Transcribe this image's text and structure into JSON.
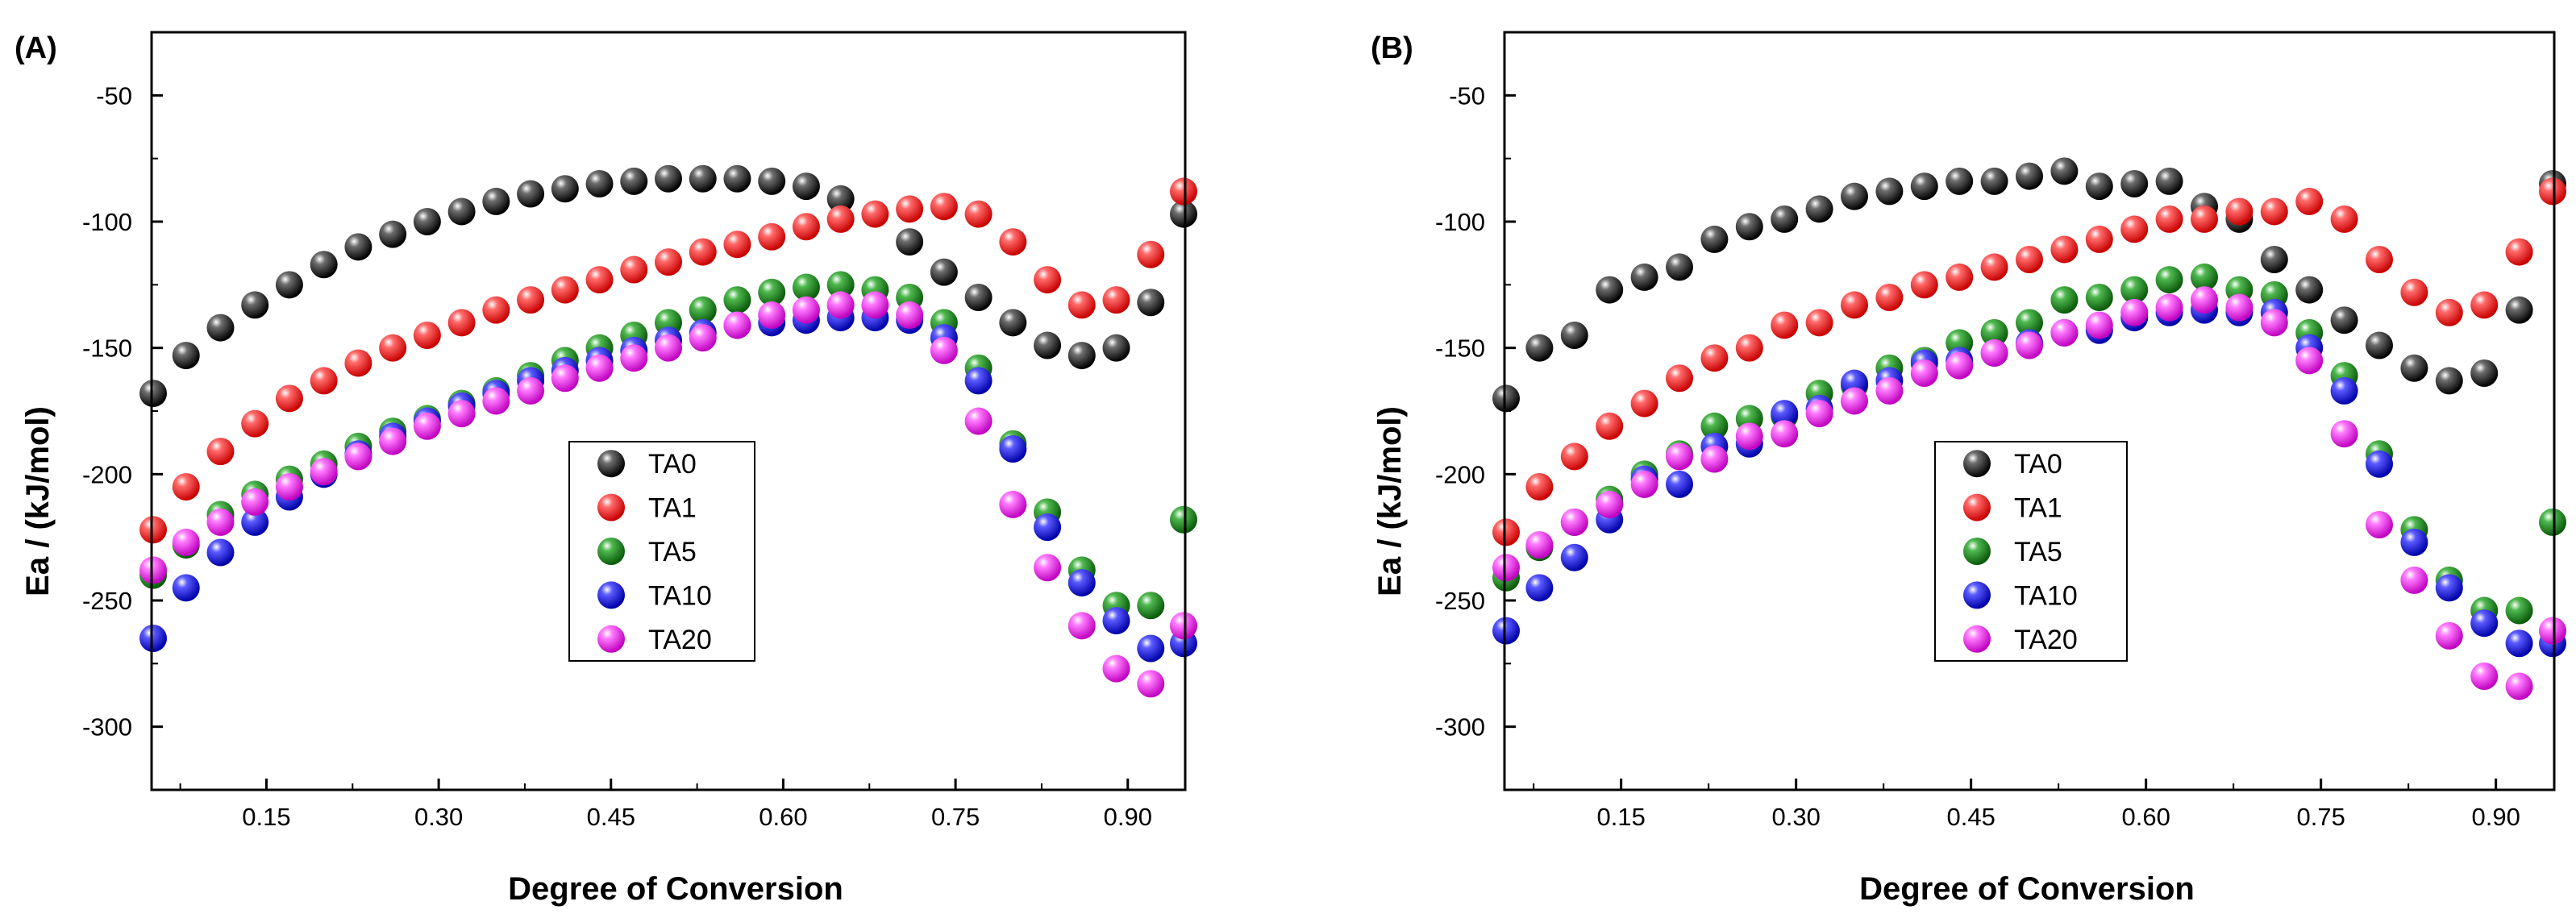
{
  "colors": {
    "TA0": "#1a1a1a",
    "TA1": "#ff1a1a",
    "TA5": "#1a8c1a",
    "TA10": "#1a1aff",
    "TA20": "#ff33ff"
  },
  "chart_data": [
    {
      "type": "scatter",
      "panel_label": "(A)",
      "xlabel": "Degree of Conversion",
      "ylabel": "Ea / (kJ/mol)",
      "xlim": [
        0.05,
        0.95
      ],
      "ylim": [
        -325,
        -25
      ],
      "xticks": [
        0.15,
        0.3,
        0.45,
        0.6,
        0.75,
        0.9
      ],
      "xtick_labels": [
        "0.15",
        "0.30",
        "0.45",
        "0.60",
        "0.75",
        "0.90"
      ],
      "yticks": [
        -50,
        -100,
        -150,
        -200,
        -250,
        -300
      ],
      "ytick_labels": [
        "-50",
        "-100",
        "-150",
        "-200",
        "-250",
        "-300"
      ],
      "legend": [
        "TA0",
        "TA1",
        "TA5",
        "TA10",
        "TA20"
      ],
      "x": [
        0.05,
        0.08,
        0.11,
        0.14,
        0.17,
        0.2,
        0.23,
        0.26,
        0.29,
        0.32,
        0.35,
        0.38,
        0.41,
        0.44,
        0.47,
        0.5,
        0.53,
        0.56,
        0.59,
        0.62,
        0.65,
        0.68,
        0.71,
        0.74,
        0.77,
        0.8,
        0.83,
        0.86,
        0.89,
        0.92,
        0.95
      ],
      "series": [
        {
          "name": "TA0",
          "values": [
            -168,
            -153,
            -142,
            -133,
            -125,
            -117,
            -110,
            -105,
            -100,
            -96,
            -92,
            -89,
            -87,
            -85,
            -84,
            -83,
            -83,
            -83,
            -84,
            -86,
            -91,
            null,
            -108,
            -120,
            -130,
            -140,
            -149,
            -153,
            -150,
            -132,
            -97
          ]
        },
        {
          "name": "TA1",
          "values": [
            -222,
            -205,
            -191,
            -180,
            -170,
            -163,
            -156,
            -150,
            -145,
            -140,
            -135,
            -131,
            -127,
            -123,
            -119,
            -116,
            -112,
            -109,
            -106,
            -102,
            -99,
            -97,
            -95,
            -94,
            -97,
            -108,
            -123,
            -133,
            -131,
            -113,
            -88
          ]
        },
        {
          "name": "TA5",
          "values": [
            -240,
            -228,
            -216,
            -208,
            -202,
            -196,
            -189,
            -183,
            -178,
            -172,
            -167,
            -161,
            -155,
            -150,
            -145,
            -140,
            -135,
            -131,
            -128,
            -126,
            -125,
            -127,
            -130,
            -140,
            -158,
            -188,
            -215,
            -238,
            -252,
            -252,
            -218
          ]
        },
        {
          "name": "TA10",
          "values": [
            -265,
            -245,
            -231,
            -219,
            -209,
            -200,
            -192,
            -185,
            -179,
            -173,
            -168,
            -163,
            -159,
            -155,
            -151,
            -147,
            -144,
            -141,
            -140,
            -139,
            -138,
            -138,
            -139,
            -146,
            -163,
            -190,
            -221,
            -243,
            -258,
            -269,
            -267
          ]
        },
        {
          "name": "TA20",
          "values": [
            -238,
            -227,
            -219,
            -211,
            -205,
            -199,
            -193,
            -187,
            -181,
            -176,
            -171,
            -167,
            -162,
            -158,
            -154,
            -150,
            -146,
            -141,
            -137,
            -135,
            -133,
            -133,
            -137,
            -151,
            -179,
            -212,
            -237,
            -260,
            -277,
            -283,
            -260
          ]
        }
      ]
    },
    {
      "type": "scatter",
      "panel_label": "(B)",
      "xlabel": "Degree of Conversion",
      "ylabel": "Ea / (kJ/mol)",
      "xlim": [
        0.05,
        0.95
      ],
      "ylim": [
        -325,
        -25
      ],
      "xticks": [
        0.15,
        0.3,
        0.45,
        0.6,
        0.75,
        0.9
      ],
      "xtick_labels": [
        "0.15",
        "0.30",
        "0.45",
        "0.60",
        "0.75",
        "0.90"
      ],
      "yticks": [
        -50,
        -100,
        -150,
        -200,
        -250,
        -300
      ],
      "ytick_labels": [
        "-50",
        "-100",
        "-150",
        "-200",
        "-250",
        "-300"
      ],
      "legend": [
        "TA0",
        "TA1",
        "TA5",
        "TA10",
        "TA20"
      ],
      "x": [
        0.05,
        0.08,
        0.11,
        0.14,
        0.17,
        0.2,
        0.23,
        0.26,
        0.29,
        0.32,
        0.35,
        0.38,
        0.41,
        0.44,
        0.47,
        0.5,
        0.53,
        0.56,
        0.59,
        0.62,
        0.65,
        0.68,
        0.71,
        0.74,
        0.77,
        0.8,
        0.83,
        0.86,
        0.89,
        0.92,
        0.95
      ],
      "series": [
        {
          "name": "TA0",
          "values": [
            -170,
            -150,
            -145,
            -127,
            -122,
            -118,
            -107,
            -102,
            -99,
            -95,
            -90,
            -88,
            -86,
            -84,
            -84,
            -82,
            -80,
            -86,
            -85,
            -84,
            -94,
            -99,
            -115,
            -127,
            -139,
            -149,
            -158,
            -163,
            -160,
            -135,
            -85
          ]
        },
        {
          "name": "TA1",
          "values": [
            -223,
            -205,
            -193,
            -181,
            -172,
            -162,
            -154,
            -150,
            -141,
            -140,
            -133,
            -130,
            -125,
            -122,
            -118,
            -115,
            -111,
            -107,
            -103,
            -99,
            -99,
            -96,
            -96,
            -92,
            -99,
            -115,
            -128,
            -136,
            -133,
            -112,
            -88
          ]
        },
        {
          "name": "TA5",
          "values": [
            -241,
            -229,
            -219,
            -210,
            -200,
            -192,
            -181,
            -178,
            -177,
            -168,
            -165,
            -158,
            -155,
            -148,
            -144,
            -140,
            -131,
            -130,
            -127,
            -123,
            -122,
            -127,
            -129,
            -144,
            -161,
            -192,
            -222,
            -242,
            -254,
            -254,
            -219
          ]
        },
        {
          "name": "TA10",
          "values": [
            -262,
            -245,
            -233,
            -218,
            -202,
            -204,
            -189,
            -188,
            -176,
            -174,
            -164,
            -163,
            -156,
            -155,
            -152,
            -148,
            -144,
            -143,
            -138,
            -136,
            -135,
            -136,
            -136,
            -150,
            -167,
            -196,
            -227,
            -245,
            -259,
            -267,
            -267
          ]
        },
        {
          "name": "TA20",
          "values": [
            -237,
            -228,
            -219,
            -212,
            -204,
            -193,
            -194,
            -185,
            -184,
            -176,
            -171,
            -167,
            -160,
            -157,
            -152,
            -149,
            -144,
            -141,
            -136,
            -134,
            -131,
            -134,
            -140,
            -155,
            -184,
            -220,
            -242,
            -264,
            -280,
            -284,
            -262
          ]
        }
      ]
    }
  ]
}
